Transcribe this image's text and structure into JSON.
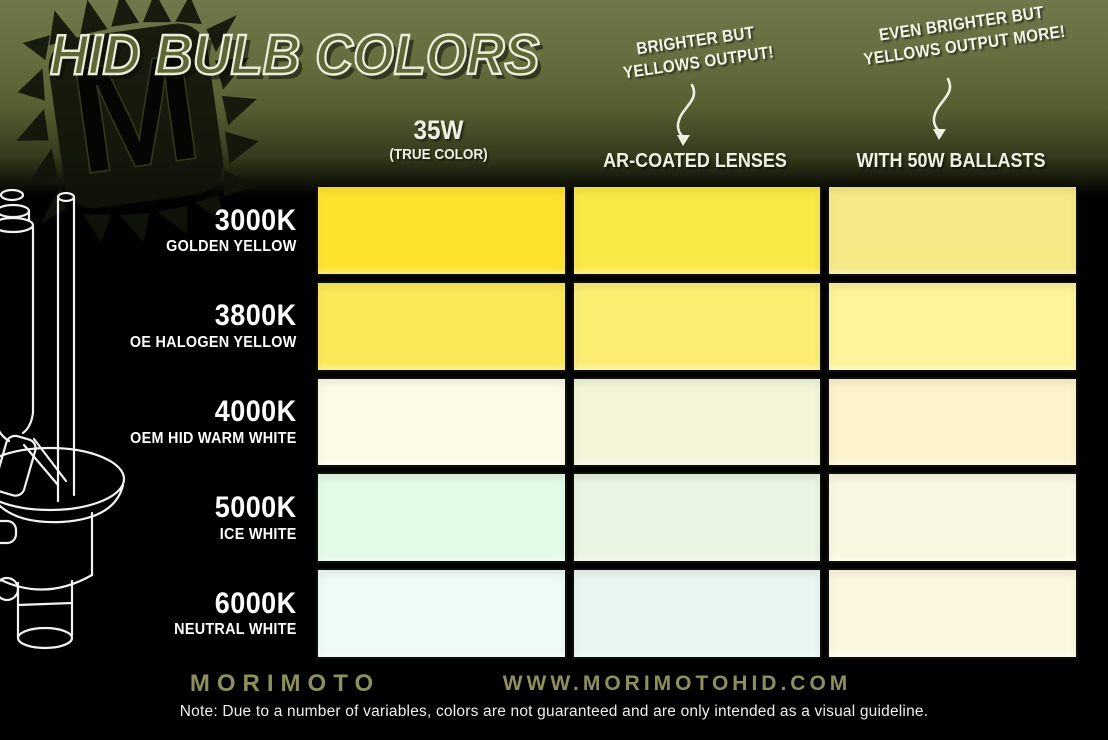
{
  "title": "HID BULB COLORS",
  "annotations": [
    {
      "line1": "BRIGHTER BUT",
      "line2": "YELLOWS OUTPUT!"
    },
    {
      "line1": "EVEN BRIGHTER BUT",
      "line2": "YELLOWS OUTPUT MORE!"
    }
  ],
  "columns": [
    {
      "label": "35W",
      "sublabel": "(TRUE COLOR)"
    },
    {
      "label": "AR-COATED LENSES",
      "sublabel": ""
    },
    {
      "label": "WITH 50W BALLASTS",
      "sublabel": ""
    }
  ],
  "rows": [
    {
      "temp": "3000K",
      "name": "GOLDEN YELLOW",
      "colors": [
        "#FDE32C",
        "#FAE845",
        "#F5E985"
      ]
    },
    {
      "temp": "3800K",
      "name": "OE HALOGEN YELLOW",
      "colors": [
        "#FBE957",
        "#FBEE73",
        "#FDF49B"
      ]
    },
    {
      "temp": "4000K",
      "name": "OEM HID WARM WHITE",
      "colors": [
        "#FDFBE8",
        "#F4F5D8",
        "#FCF3CC"
      ]
    },
    {
      "temp": "5000K",
      "name": "ICE WHITE",
      "colors": [
        "#E2FCE7",
        "#EAF4E2",
        "#FAF8E3"
      ]
    },
    {
      "temp": "6000K",
      "name": "NEUTRAL WHITE",
      "colors": [
        "#EFFBF9",
        "#E9F6F0",
        "#FCF8E0"
      ]
    }
  ],
  "footer": {
    "brand": "MORIMOTO",
    "website": "WWW.MORIMOTOHID.COM",
    "note": "Note: Due to a number of variables, colors are not guaranteed and are only intended as a visual guideline."
  },
  "colors": {
    "background_olive": "#6E7546",
    "background_black": "#000000",
    "footer_text": "#8F8F5D",
    "header_text": "#EEF0E2"
  },
  "chart_data": {
    "type": "heatmap",
    "title": "HID BULB COLORS",
    "columns": [
      "35W (TRUE COLOR)",
      "AR-COATED LENSES",
      "WITH 50W BALLASTS"
    ],
    "rows": [
      "3000K GOLDEN YELLOW",
      "3800K OE HALOGEN YELLOW",
      "4000K OEM HID WARM WHITE",
      "5000K ICE WHITE",
      "6000K NEUTRAL WHITE"
    ],
    "cell_colors": [
      [
        "#FDE32C",
        "#FAE845",
        "#F5E985"
      ],
      [
        "#FBE957",
        "#FBEE73",
        "#FDF49B"
      ],
      [
        "#FDFBE8",
        "#F4F5D8",
        "#FCF3CC"
      ],
      [
        "#E2FCE7",
        "#EAF4E2",
        "#FAF8E3"
      ],
      [
        "#EFFBF9",
        "#E9F6F0",
        "#FCF8E0"
      ]
    ],
    "annotations": [
      "BRIGHTER BUT YELLOWS OUTPUT! -> AR-COATED LENSES",
      "EVEN BRIGHTER BUT YELLOWS OUTPUT MORE! -> WITH 50W BALLASTS"
    ],
    "legend_position": "none",
    "grid": true
  }
}
